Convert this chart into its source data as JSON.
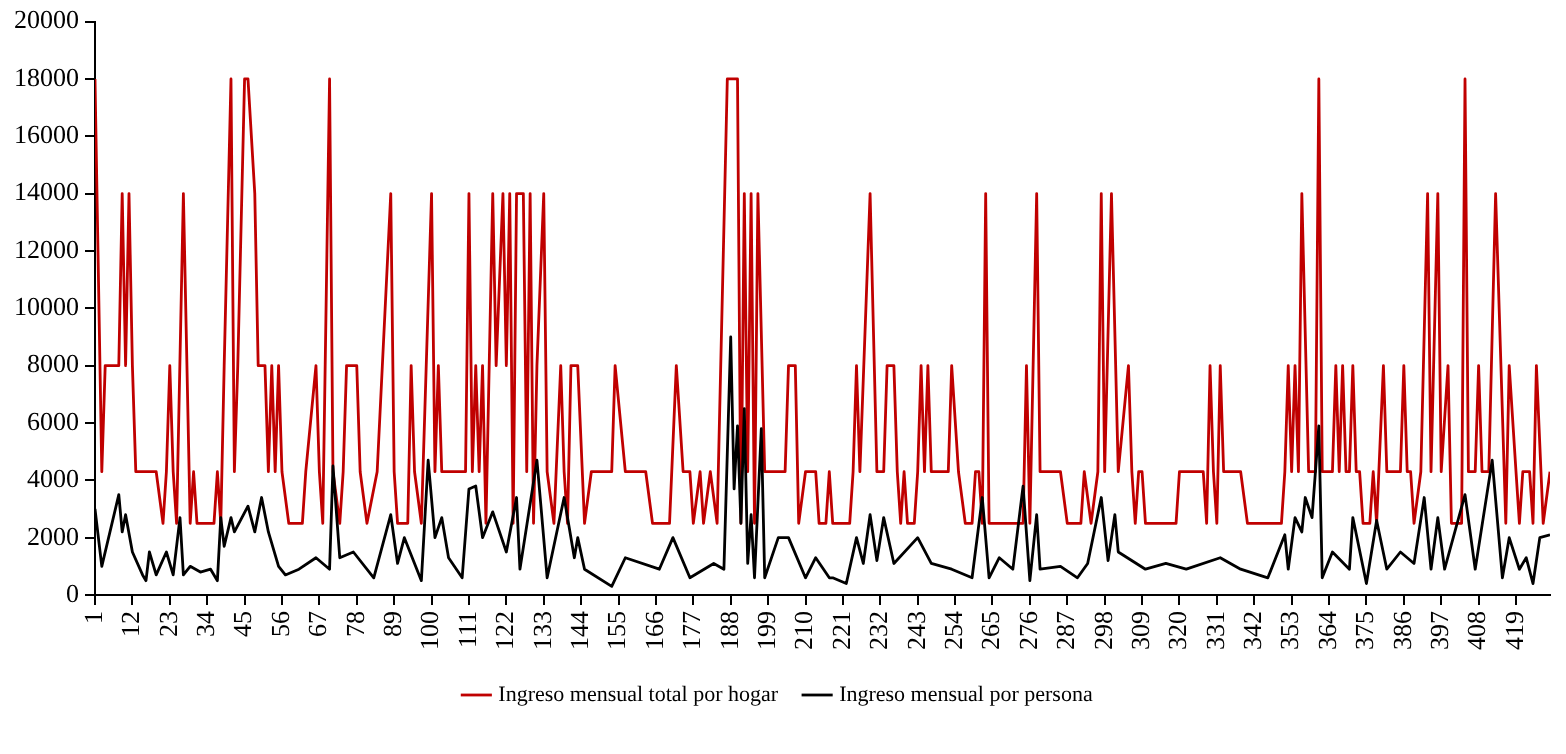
{
  "chart_data": {
    "type": "line",
    "xlim": [
      1,
      429
    ],
    "xticks": [
      1,
      12,
      23,
      34,
      45,
      56,
      67,
      78,
      89,
      100,
      111,
      122,
      133,
      144,
      155,
      166,
      177,
      188,
      199,
      210,
      221,
      232,
      243,
      254,
      265,
      276,
      287,
      298,
      309,
      320,
      331,
      342,
      353,
      364,
      375,
      386,
      397,
      408,
      419
    ],
    "ylim": [
      0,
      20000
    ],
    "yticks": [
      0,
      2000,
      4000,
      6000,
      8000,
      10000,
      12000,
      14000,
      16000,
      18000,
      20000
    ],
    "grid": false,
    "legend": "bottom",
    "marker": "none",
    "line_style": "solid",
    "series": [
      {
        "name": "Ingreso mensual total por hogar",
        "color": "#c00000",
        "x": [
          1,
          3,
          4,
          8,
          9,
          10,
          11,
          12,
          13,
          19,
          21,
          22,
          23,
          24,
          25,
          27,
          29,
          30,
          31,
          36,
          37,
          38,
          39,
          41,
          42,
          43,
          45,
          46,
          48,
          49,
          51,
          52,
          53,
          54,
          55,
          56,
          58,
          62,
          63,
          66,
          67,
          68,
          70,
          71,
          73,
          74,
          75,
          78,
          79,
          81,
          84,
          88,
          89,
          90,
          93,
          94,
          95,
          97,
          100,
          101,
          102,
          103,
          110,
          111,
          112,
          113,
          114,
          115,
          116,
          118,
          119,
          121,
          122,
          123,
          124,
          125,
          127,
          128,
          129,
          130,
          131,
          133,
          134,
          136,
          138,
          139,
          140,
          141,
          143,
          145,
          147,
          153,
          154,
          157,
          163,
          165,
          170,
          172,
          174,
          176,
          177,
          179,
          180,
          182,
          184,
          187,
          190,
          191,
          192,
          193,
          194,
          195,
          196,
          198,
          204,
          205,
          207,
          208,
          210,
          213,
          214,
          216,
          217,
          218,
          223,
          224,
          225,
          226,
          229,
          231,
          233,
          234,
          236,
          237,
          238,
          239,
          240,
          242,
          243,
          244,
          245,
          246,
          247,
          252,
          253,
          255,
          257,
          259,
          260,
          261,
          262,
          263,
          264,
          274,
          275,
          276,
          278,
          279,
          285,
          287,
          291,
          292,
          294,
          296,
          297,
          298,
          300,
          302,
          305,
          306,
          307,
          308,
          309,
          310,
          319,
          320,
          327,
          328,
          329,
          330,
          331,
          332,
          333,
          338,
          340,
          350,
          351,
          352,
          353,
          354,
          355,
          356,
          358,
          360,
          361,
          362,
          365,
          366,
          367,
          368,
          369,
          370,
          371,
          372,
          373,
          374,
          376,
          377,
          378,
          380,
          381,
          385,
          386,
          387,
          388,
          389,
          391,
          393,
          394,
          396,
          397,
          399,
          400,
          403,
          404,
          405,
          407,
          408,
          409,
          411,
          413,
          416,
          417,
          419,
          420,
          421,
          423,
          424,
          425,
          427,
          429
        ],
        "values": [
          18000,
          4300,
          8000,
          8000,
          14000,
          8000,
          14000,
          8000,
          4300,
          4300,
          2500,
          4300,
          8000,
          4300,
          2500,
          14000,
          2500,
          4300,
          2500,
          2500,
          4300,
          2500,
          8000,
          18000,
          4300,
          8000,
          18000,
          18000,
          14000,
          8000,
          8000,
          4300,
          8000,
          4300,
          8000,
          4300,
          2500,
          2500,
          4300,
          8000,
          4300,
          2500,
          18000,
          4300,
          2500,
          4300,
          8000,
          8000,
          4300,
          2500,
          4300,
          14000,
          4300,
          2500,
          2500,
          8000,
          4300,
          2500,
          14000,
          4300,
          8000,
          4300,
          4300,
          14000,
          4300,
          8000,
          4300,
          8000,
          2500,
          14000,
          8000,
          14000,
          8000,
          14000,
          2500,
          14000,
          14000,
          4300,
          14000,
          2500,
          8000,
          14000,
          4300,
          2500,
          8000,
          4300,
          2500,
          8000,
          8000,
          2500,
          4300,
          4300,
          8000,
          4300,
          4300,
          2500,
          2500,
          8000,
          4300,
          4300,
          2500,
          4300,
          2500,
          4300,
          2500,
          18000,
          18000,
          2500,
          14000,
          4300,
          14000,
          2500,
          14000,
          4300,
          4300,
          8000,
          8000,
          2500,
          4300,
          4300,
          2500,
          2500,
          4300,
          2500,
          2500,
          4300,
          8000,
          4300,
          14000,
          4300,
          4300,
          8000,
          8000,
          4300,
          2500,
          4300,
          2500,
          2500,
          4300,
          8000,
          4300,
          8000,
          4300,
          4300,
          8000,
          4300,
          2500,
          2500,
          4300,
          4300,
          2500,
          14000,
          2500,
          2500,
          8000,
          2500,
          14000,
          4300,
          4300,
          2500,
          2500,
          4300,
          2500,
          4300,
          14000,
          4300,
          14000,
          4300,
          8000,
          4300,
          2500,
          4300,
          4300,
          2500,
          2500,
          4300,
          4300,
          2500,
          8000,
          4300,
          2500,
          8000,
          4300,
          4300,
          2500,
          2500,
          4300,
          8000,
          4300,
          8000,
          4300,
          14000,
          4300,
          4300,
          18000,
          4300,
          4300,
          8000,
          4300,
          8000,
          4300,
          4300,
          8000,
          4300,
          4300,
          2500,
          2500,
          4300,
          2500,
          8000,
          4300,
          4300,
          8000,
          4300,
          4300,
          2500,
          4300,
          14000,
          4300,
          14000,
          4300,
          8000,
          2500,
          2500,
          18000,
          4300,
          4300,
          8000,
          4300,
          4300,
          14000,
          2500,
          8000,
          4300,
          2500,
          4300,
          4300,
          2500,
          8000,
          2500,
          4300
        ]
      },
      {
        "name": "Ingreso mensual por persona",
        "color": "#000000",
        "x": [
          1,
          3,
          8,
          9,
          10,
          12,
          15,
          16,
          17,
          19,
          22,
          24,
          26,
          27,
          29,
          32,
          35,
          37,
          38,
          39,
          41,
          42,
          46,
          48,
          50,
          52,
          55,
          57,
          61,
          66,
          70,
          71,
          73,
          77,
          83,
          88,
          90,
          92,
          97,
          99,
          101,
          103,
          105,
          109,
          111,
          113,
          115,
          118,
          122,
          125,
          126,
          131,
          134,
          139,
          142,
          143,
          145,
          153,
          157,
          167,
          171,
          176,
          183,
          186,
          188,
          189,
          190,
          191,
          192,
          193,
          194,
          195,
          197,
          198,
          202,
          205,
          210,
          213,
          217,
          218,
          222,
          225,
          227,
          229,
          231,
          233,
          236,
          243,
          247,
          253,
          259,
          262,
          264,
          267,
          271,
          274,
          276,
          278,
          279,
          285,
          290,
          293,
          297,
          299,
          301,
          302,
          310,
          316,
          322,
          332,
          338,
          346,
          351,
          352,
          354,
          356,
          357,
          359,
          361,
          362,
          365,
          370,
          371,
          375,
          378,
          381,
          385,
          389,
          392,
          394,
          396,
          398,
          404,
          407,
          412,
          415,
          417,
          420,
          422,
          424,
          426,
          429
        ],
        "values": [
          3000,
          1000,
          3500,
          2200,
          2800,
          1500,
          700,
          500,
          1500,
          700,
          1500,
          700,
          2700,
          700,
          1000,
          800,
          900,
          500,
          2700,
          1700,
          2700,
          2200,
          3100,
          2200,
          3400,
          2200,
          1000,
          700,
          900,
          1300,
          900,
          4500,
          1300,
          1500,
          600,
          2800,
          1100,
          2000,
          500,
          4700,
          2000,
          2700,
          1300,
          600,
          3700,
          3800,
          2000,
          2900,
          1500,
          3400,
          900,
          4700,
          600,
          3400,
          1300,
          2000,
          900,
          300,
          1300,
          900,
          2000,
          600,
          1100,
          900,
          9000,
          3700,
          5900,
          2500,
          6500,
          1100,
          2800,
          600,
          5800,
          600,
          2000,
          2000,
          600,
          1300,
          600,
          600,
          400,
          2000,
          1100,
          2800,
          1200,
          2700,
          1100,
          2000,
          1100,
          900,
          600,
          3400,
          600,
          1300,
          900,
          3800,
          500,
          2800,
          900,
          1000,
          600,
          1100,
          3400,
          1200,
          2800,
          1500,
          900,
          1100,
          900,
          1300,
          900,
          600,
          2100,
          900,
          2700,
          2200,
          3400,
          2700,
          5900,
          600,
          1500,
          900,
          2700,
          400,
          2600,
          900,
          1500,
          1100,
          3400,
          900,
          2700,
          900,
          3500,
          900,
          4700,
          600,
          2000,
          900,
          1300,
          400,
          2000,
          2100
        ]
      }
    ]
  }
}
